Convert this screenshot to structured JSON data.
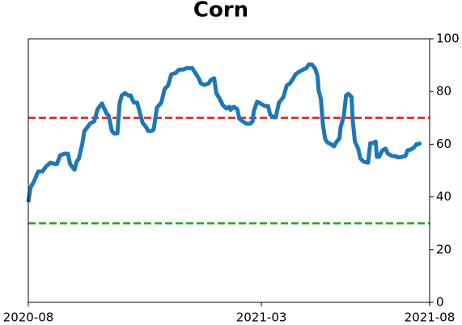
{
  "chart_data": {
    "type": "line",
    "title": "Corn",
    "x": [
      0,
      2,
      5,
      9,
      13,
      16,
      20,
      24,
      26,
      29,
      33,
      36,
      38,
      42,
      44,
      46,
      49,
      51,
      54,
      56,
      60,
      63,
      67,
      68,
      71,
      73,
      76,
      78,
      81,
      83,
      85,
      88,
      91,
      93,
      96,
      99,
      101,
      104,
      107,
      109,
      112,
      114,
      117,
      121,
      124,
      127,
      130,
      134,
      137,
      141,
      144,
      149,
      152,
      155,
      157,
      160,
      164,
      166,
      169,
      171,
      174,
      177,
      180,
      183,
      184,
      187,
      190,
      192,
      195,
      198,
      202,
      204,
      205,
      208,
      211,
      215,
      218,
      220,
      223,
      225,
      228,
      232,
      235,
      238,
      241,
      243,
      247,
      250,
      253,
      255,
      258,
      261,
      263,
      264,
      266,
      268,
      270,
      272,
      275,
      278,
      280,
      283,
      284,
      287,
      289,
      291,
      294,
      295,
      297,
      300,
      302,
      305,
      309,
      311,
      313,
      316,
      317,
      319,
      322,
      325,
      327,
      331,
      334,
      336,
      340,
      343,
      345,
      348,
      351,
      353,
      355,
      357
    ],
    "series": [
      {
        "color": "#1f77b4",
        "values": [
          38,
          43.6,
          45.7,
          49.7,
          49.7,
          51.5,
          53,
          52.5,
          52.5,
          55.8,
          56.4,
          56.4,
          52.5,
          50.3,
          53.4,
          54.6,
          60,
          65,
          66.6,
          67.8,
          68.7,
          73.3,
          75.5,
          74.5,
          71.8,
          70.9,
          65,
          64.1,
          64.1,
          75.5,
          78.5,
          79.4,
          78.5,
          78.5,
          75.8,
          75.8,
          72.7,
          68.1,
          66.6,
          65,
          65,
          65.6,
          73.9,
          75.8,
          81,
          82.2,
          86.5,
          87,
          88.3,
          88.3,
          88.9,
          88.9,
          87,
          85,
          83.1,
          82.5,
          83.1,
          84.4,
          85,
          79.4,
          77.3,
          74.8,
          73.6,
          74.2,
          73,
          74.2,
          73.3,
          69.6,
          68.7,
          67.8,
          67.8,
          68.7,
          72.4,
          76.1,
          75.5,
          74.5,
          74.5,
          71.2,
          70.2,
          70.2,
          75.8,
          77.9,
          82.2,
          83.1,
          85,
          86.5,
          87.7,
          88.3,
          88.9,
          90.2,
          90.2,
          88.6,
          85.9,
          80.4,
          77.3,
          67.2,
          62,
          60.7,
          60.1,
          59.2,
          60.7,
          62.3,
          66.3,
          70.9,
          78.5,
          79.1,
          77.9,
          69.3,
          61,
          58.3,
          54.6,
          53.4,
          53,
          60.4,
          60.4,
          61,
          55.2,
          55.2,
          57.7,
          58.3,
          56.4,
          55.5,
          55.5,
          55,
          55.2,
          55.5,
          57.7,
          58,
          58.9,
          60,
          60,
          60.7
        ]
      }
    ],
    "reference_lines": [
      {
        "value": 70,
        "color": "#d62728"
      },
      {
        "value": 30,
        "color": "#2ca02c"
      }
    ],
    "xlim": [
      0,
      365
    ],
    "xticks": [
      {
        "value": 0,
        "label": "2020-08"
      },
      {
        "value": 212,
        "label": "2021-03"
      },
      {
        "value": 365,
        "label": "2021-08"
      }
    ],
    "ylim": [
      0,
      100
    ],
    "yticks": [
      0,
      20,
      40,
      60,
      80,
      100
    ],
    "y_axis_side": "right"
  }
}
